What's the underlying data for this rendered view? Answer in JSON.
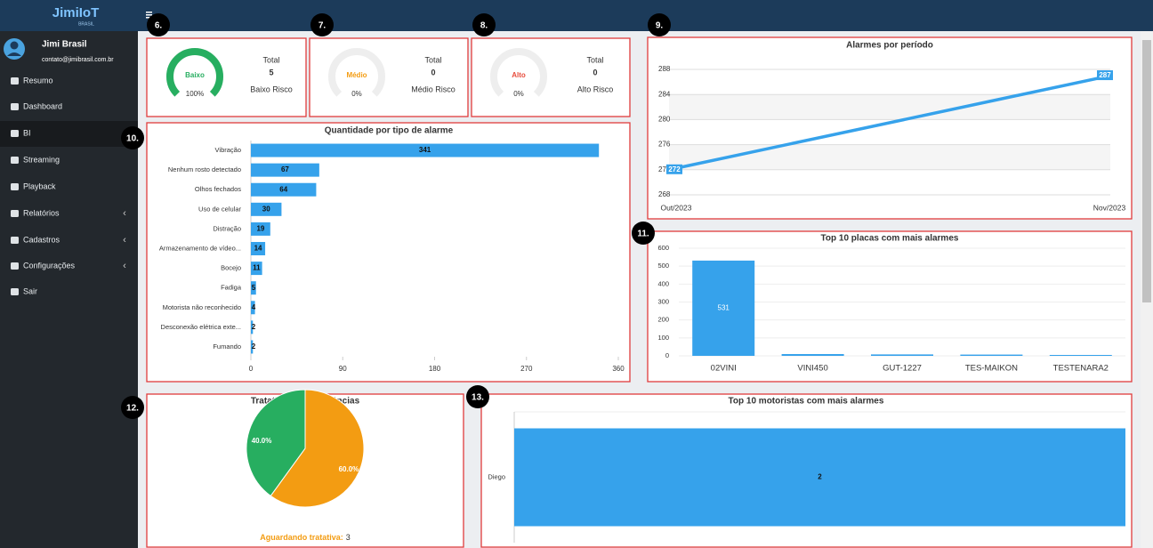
{
  "brand": "JimiIoT",
  "brand_sub": "BRASIL",
  "user": {
    "name": "Jimi Brasil",
    "email": "contato@jimibrasil.com.br"
  },
  "menu": [
    {
      "label": "Resumo"
    },
    {
      "label": "Dashboard"
    },
    {
      "label": "BI",
      "active": true
    },
    {
      "label": "Streaming"
    },
    {
      "label": "Playback"
    },
    {
      "label": "Relatórios",
      "submenu": true
    },
    {
      "label": "Cadastros",
      "submenu": true
    },
    {
      "label": "Configurações",
      "submenu": true
    },
    {
      "label": "Sair"
    }
  ],
  "markers": [
    "6.",
    "7.",
    "8.",
    "9.",
    "10.",
    "11.",
    "12.",
    "13."
  ],
  "gauges": [
    {
      "label": "Baixo",
      "percent": 100,
      "percent_label": "100%",
      "total_label": "Total",
      "total": 5,
      "caption": "Baixo Risco",
      "color": "#27ae60"
    },
    {
      "label": "Médio",
      "percent": 0,
      "percent_label": "0%",
      "total_label": "Total",
      "total": 0,
      "caption": "Médio Risco",
      "color": "#f39c12"
    },
    {
      "label": "Alto",
      "percent": 0,
      "percent_label": "0%",
      "total_label": "Total",
      "total": 0,
      "caption": "Alto Risco",
      "color": "#e74c3c"
    }
  ],
  "period_chart": {
    "type": "line",
    "title": "Alarmes por período",
    "x": [
      "Out/2023",
      "Nov/2023"
    ],
    "values": [
      272,
      287
    ],
    "color": "#36a2eb",
    "ylim": [
      268,
      288
    ],
    "yticks": [
      268,
      272,
      276,
      280,
      284,
      288
    ],
    "grid": true
  },
  "alarm_types": {
    "type": "hbar",
    "title": "Quantidade por tipo de alarme",
    "categories": [
      "Vibração",
      "Nenhum rosto detectado",
      "Olhos fechados",
      "Uso de celular",
      "Distração",
      "Armazenamento de vídeo...",
      "Bocejo",
      "Fadiga",
      "Motorista não reconhecido",
      "Desconexão elétrica exte...",
      "Fumando"
    ],
    "values": [
      341,
      67,
      64,
      30,
      19,
      14,
      11,
      5,
      4,
      2,
      2
    ],
    "color": "#36a2eb",
    "xlim": [
      0,
      360
    ],
    "xticks": [
      0,
      90,
      180,
      270,
      360
    ]
  },
  "plates": {
    "type": "bar",
    "title": "Top 10 placas com mais alarmes",
    "categories": [
      "02VINI",
      "VINI450",
      "GUT-1227",
      "TES-MAIKON",
      "TESTENARA2"
    ],
    "values": [
      531,
      10,
      8,
      7,
      5
    ],
    "color": "#36a2eb",
    "ylim": [
      0,
      600
    ],
    "yticks": [
      0,
      100,
      200,
      300,
      400,
      500,
      600
    ],
    "grid": true
  },
  "treatments": {
    "type": "pie",
    "title": "Tratativas de Ocorrências",
    "values": [
      60,
      40
    ],
    "value_labels": [
      "60.0%",
      "40.0%"
    ],
    "colors": [
      "#f39c12",
      "#27ae60"
    ],
    "legend_label": "Aguardando tratativa:",
    "legend_value": 3
  },
  "drivers": {
    "type": "hbar",
    "title": "Top 10 motoristas com mais alarmes",
    "categories": [
      "Diego"
    ],
    "values": [
      2
    ],
    "color": "#36a2eb",
    "xlim": [
      0,
      2
    ]
  }
}
